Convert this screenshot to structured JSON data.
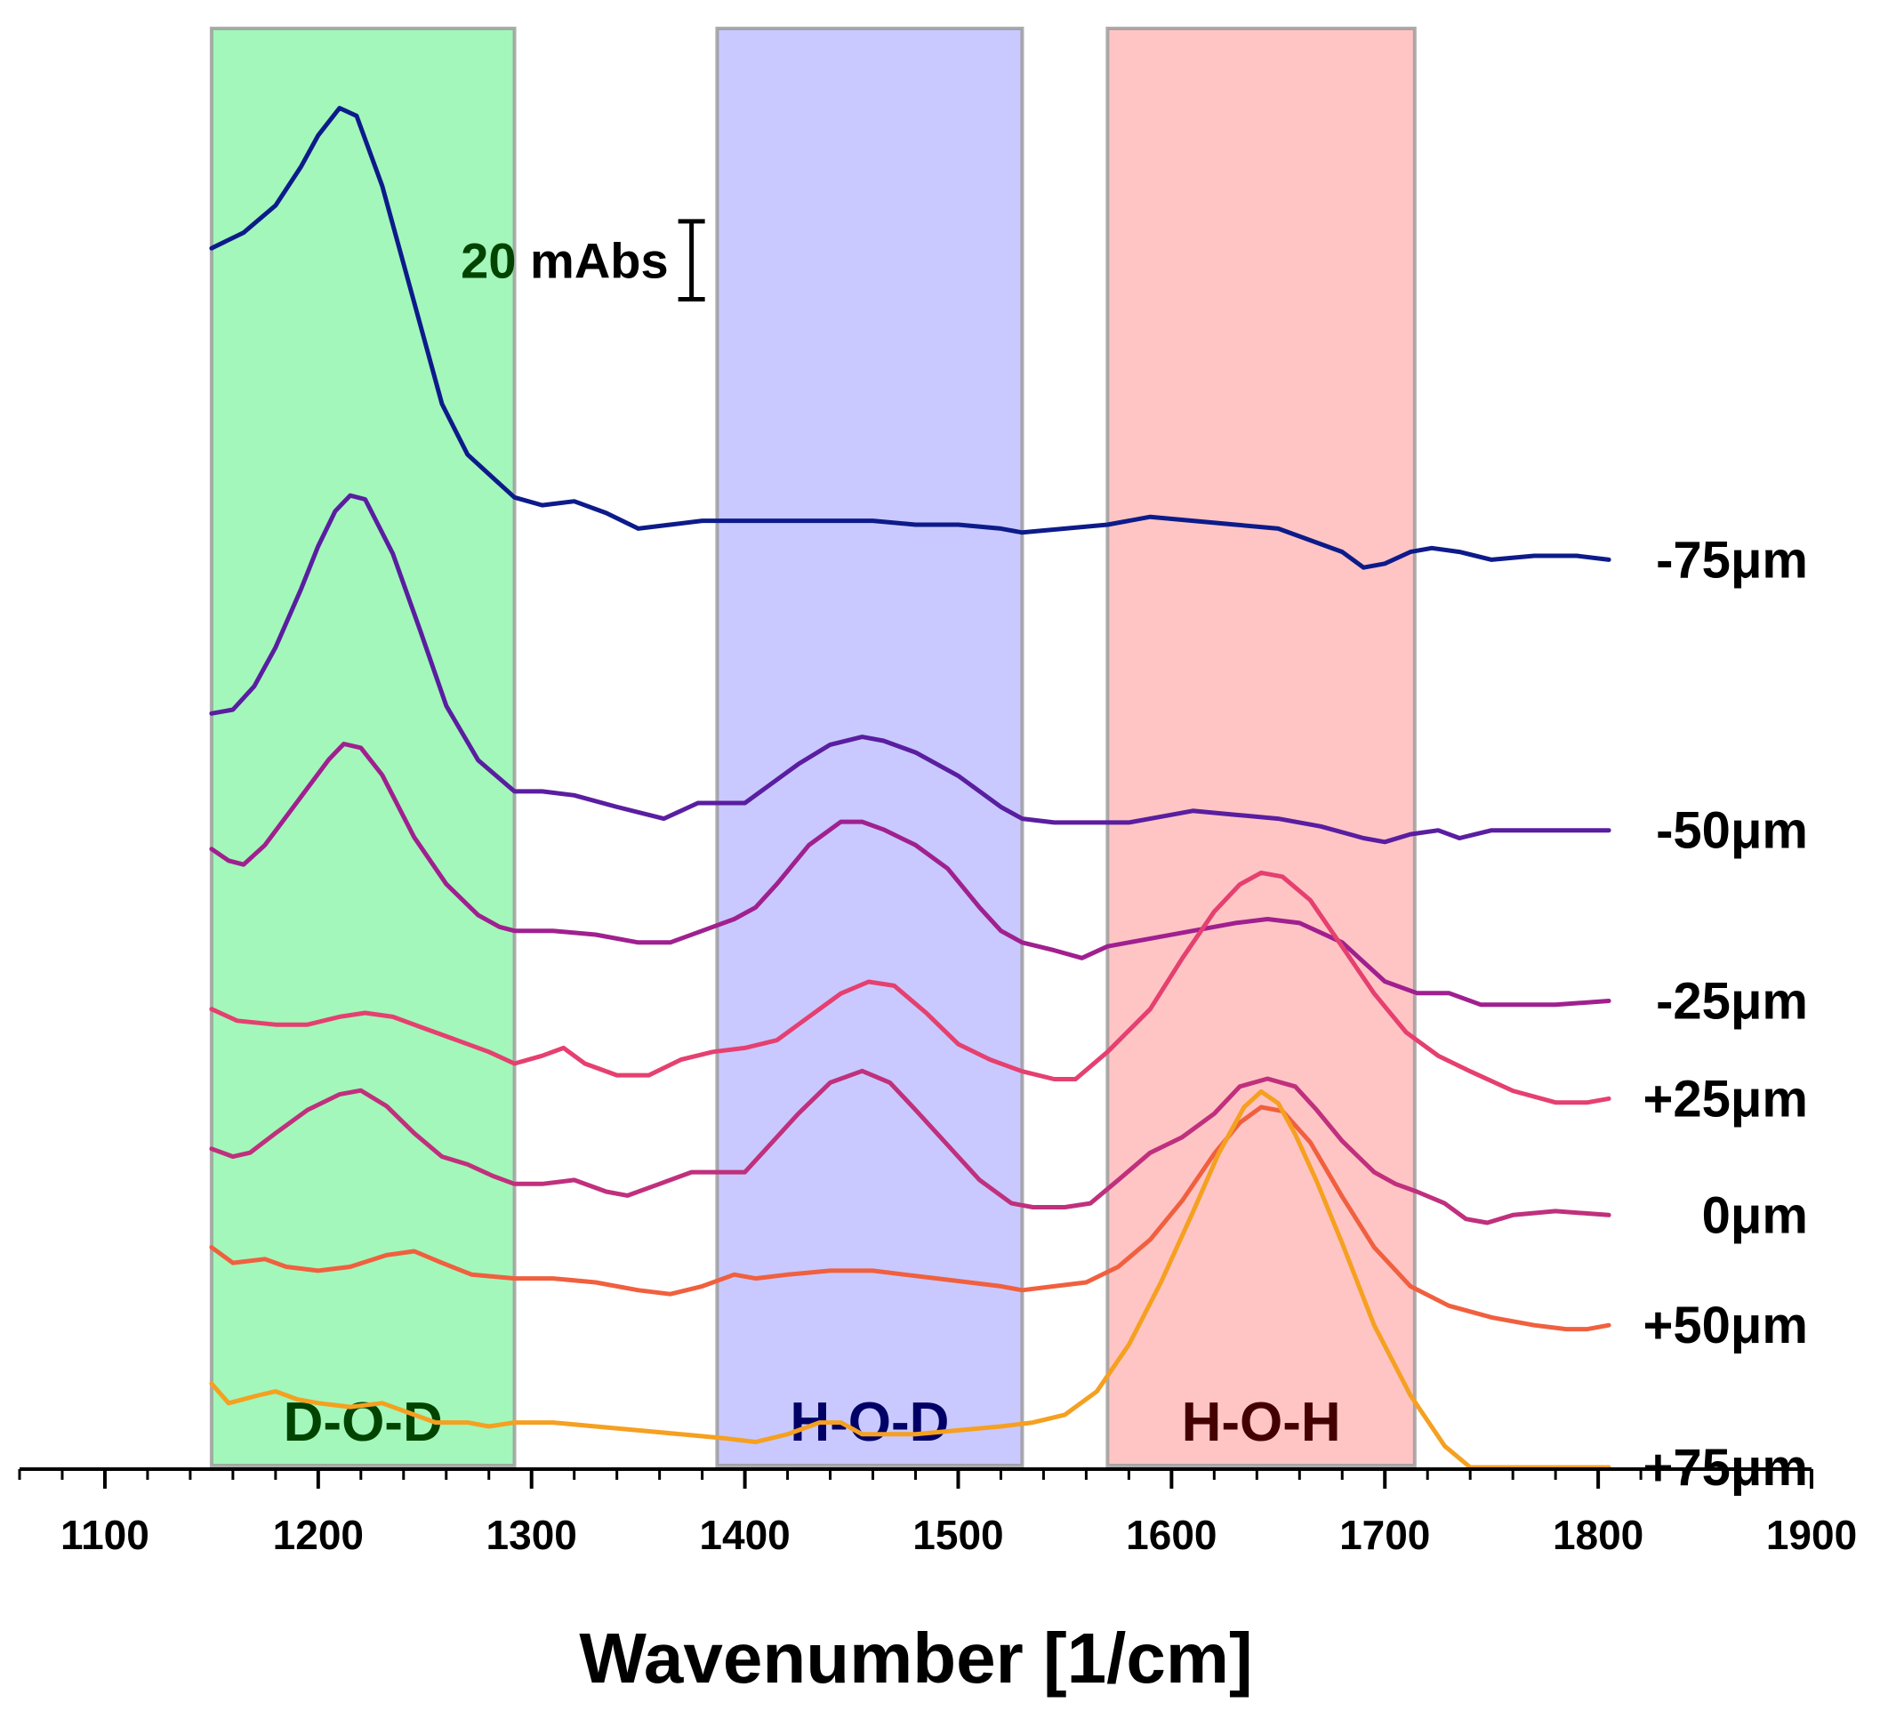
{
  "chart_data": {
    "type": "line",
    "title": "",
    "xlabel": "Wavenumber [1/cm]",
    "ylabel": "",
    "xlim": [
      1060,
      1900
    ],
    "ylim": [
      -70,
      300
    ],
    "x_ticks": [
      1100,
      1200,
      1300,
      1400,
      1500,
      1600,
      1700,
      1800,
      1900
    ],
    "x_tick_labels": [
      "1100",
      "1200",
      "1300",
      "1400",
      "1500",
      "1600",
      "1700",
      "1800",
      "1900"
    ],
    "y_axis_visible": false,
    "bands": [
      {
        "label": "D-O-D",
        "from": 1150,
        "to": 1292,
        "fill": "#33ee66",
        "label_color": "#004400"
      },
      {
        "label": "H-O-D",
        "from": 1387,
        "to": 1530,
        "fill": "#8888ff",
        "label_color": "#000066"
      },
      {
        "label": "H-O-H",
        "from": 1570,
        "to": 1714,
        "fill": "#ff7f7f",
        "label_color": "#440000"
      }
    ],
    "scale_bar": {
      "label": "20 mAbs",
      "value": 20,
      "x": 1375,
      "y_bottom": 230
    },
    "series": [
      {
        "name": "-75μm",
        "color": "#0d1b8a",
        "x": [
          1150,
          1165,
          1180,
          1192,
          1200,
          1210,
          1218,
          1230,
          1245,
          1258,
          1270,
          1282,
          1292,
          1305,
          1320,
          1335,
          1350,
          1365,
          1380,
          1400,
          1420,
          1440,
          1460,
          1480,
          1500,
          1520,
          1530,
          1550,
          1570,
          1590,
          1610,
          1630,
          1650,
          1665,
          1680,
          1690,
          1700,
          1712,
          1722,
          1735,
          1750,
          1770,
          1790,
          1805
        ],
        "y": [
          243.1,
          247.1,
          254.1,
          264.1,
          272.1,
          279.1,
          277.1,
          259.1,
          229.1,
          203.1,
          190.1,
          184.1,
          179.1,
          177.1,
          178.1,
          175.1,
          171.1,
          172.1,
          173.1,
          173.1,
          173.1,
          173.1,
          173.1,
          172.1,
          172.1,
          171.1,
          170.1,
          171.1,
          172.1,
          174.1,
          173.1,
          172.1,
          171.1,
          168.1,
          165.1,
          161.1,
          162.1,
          165.1,
          166.1,
          165.1,
          163.1,
          164.1,
          164.1,
          163.1
        ]
      },
      {
        "name": "-50μm",
        "color": "#5a1ea0",
        "x": [
          1150,
          1160,
          1170,
          1180,
          1192,
          1200,
          1208,
          1215,
          1222,
          1235,
          1248,
          1260,
          1275,
          1292,
          1305,
          1320,
          1340,
          1362,
          1378,
          1390,
          1400,
          1410,
          1425,
          1440,
          1455,
          1465,
          1480,
          1500,
          1520,
          1530,
          1545,
          1560,
          1580,
          1600,
          1610,
          1630,
          1650,
          1670,
          1690,
          1700,
          1712,
          1725,
          1735,
          1750,
          1770,
          1790,
          1805
        ],
        "y": [
          123.6,
          124.6,
          130.6,
          140.6,
          155.6,
          166.6,
          175.6,
          179.6,
          178.6,
          164.6,
          144.6,
          125.6,
          111.6,
          103.6,
          103.6,
          102.6,
          99.6,
          96.6,
          100.6,
          100.6,
          100.6,
          104.6,
          110.6,
          115.6,
          117.6,
          116.6,
          113.6,
          107.6,
          99.6,
          96.6,
          95.6,
          95.6,
          95.6,
          97.6,
          98.6,
          97.6,
          96.6,
          94.6,
          91.6,
          90.6,
          92.6,
          93.6,
          91.6,
          93.6,
          93.6,
          93.6,
          93.6
        ]
      },
      {
        "name": "-25μm",
        "color": "#a0208f",
        "x": [
          1150,
          1158,
          1165,
          1175,
          1190,
          1205,
          1212,
          1220,
          1230,
          1245,
          1260,
          1275,
          1285,
          1292,
          1310,
          1330,
          1350,
          1365,
          1380,
          1395,
          1405,
          1415,
          1430,
          1445,
          1455,
          1465,
          1480,
          1495,
          1510,
          1520,
          1530,
          1545,
          1558,
          1570,
          1590,
          1610,
          1630,
          1645,
          1660,
          1680,
          1700,
          1715,
          1730,
          1745,
          1760,
          1780,
          1805
        ],
        "y": [
          88.8,
          85.8,
          84.8,
          89.8,
          100.8,
          111.8,
          115.8,
          114.8,
          107.8,
          91.8,
          79.8,
          71.8,
          68.8,
          67.8,
          67.8,
          66.8,
          64.8,
          64.8,
          67.8,
          70.8,
          73.8,
          79.8,
          89.8,
          95.8,
          95.8,
          93.8,
          89.8,
          83.8,
          73.8,
          67.8,
          64.8,
          62.8,
          60.8,
          63.8,
          65.8,
          67.8,
          69.8,
          70.8,
          69.8,
          64.8,
          54.8,
          51.8,
          51.8,
          48.8,
          48.8,
          48.8,
          49.8
        ]
      },
      {
        "name": "0μm",
        "color": "#c0307d",
        "x": [
          1150,
          1160,
          1168,
          1180,
          1195,
          1210,
          1220,
          1232,
          1245,
          1258,
          1270,
          1282,
          1292,
          1305,
          1320,
          1335,
          1345,
          1360,
          1375,
          1390,
          1400,
          1410,
          1425,
          1440,
          1455,
          1468,
          1480,
          1495,
          1510,
          1525,
          1535,
          1550,
          1562,
          1575,
          1590,
          1605,
          1620,
          1632,
          1645,
          1658,
          1668,
          1680,
          1695,
          1705,
          1715,
          1728,
          1738,
          1748,
          1760,
          1780,
          1805
        ],
        "y": [
          11.8,
          9.8,
          10.8,
          15.8,
          21.8,
          25.8,
          26.8,
          22.8,
          15.8,
          9.8,
          7.8,
          4.8,
          2.8,
          2.8,
          3.8,
          0.8,
          -0.2,
          2.8,
          5.8,
          5.8,
          5.8,
          11.8,
          20.8,
          28.8,
          31.8,
          28.8,
          21.8,
          12.8,
          3.8,
          -2.2,
          -3.2,
          -3.2,
          -2.2,
          3.8,
          10.8,
          14.8,
          20.8,
          27.8,
          29.8,
          27.8,
          21.8,
          13.8,
          5.8,
          2.8,
          0.8,
          -2.2,
          -6.2,
          -7.2,
          -5.2,
          -4.2,
          -5.2
        ]
      },
      {
        "name": "+25μm",
        "color": "#e54070",
        "x": [
          1150,
          1162,
          1180,
          1195,
          1210,
          1222,
          1235,
          1250,
          1265,
          1280,
          1292,
          1305,
          1315,
          1325,
          1340,
          1355,
          1370,
          1385,
          1400,
          1415,
          1430,
          1445,
          1458,
          1470,
          1485,
          1500,
          1515,
          1530,
          1545,
          1555,
          1570,
          1590,
          1605,
          1620,
          1632,
          1642,
          1652,
          1665,
          1680,
          1695,
          1710,
          1725,
          1740,
          1760,
          1780,
          1795,
          1805
        ],
        "y": [
          47.7,
          44.7,
          43.7,
          43.7,
          45.7,
          46.7,
          45.7,
          42.7,
          39.7,
          36.7,
          33.7,
          35.7,
          37.7,
          33.7,
          30.7,
          30.7,
          34.7,
          36.7,
          37.7,
          39.7,
          45.7,
          51.7,
          54.7,
          53.7,
          46.7,
          38.7,
          34.7,
          31.7,
          29.7,
          29.7,
          36.7,
          47.7,
          60.7,
          72.7,
          79.7,
          82.7,
          81.7,
          75.7,
          63.7,
          51.7,
          41.7,
          35.7,
          31.7,
          26.7,
          23.7,
          23.7,
          24.7
        ]
      },
      {
        "name": "+50μm",
        "color": "#f0603f",
        "x": [
          1150,
          1160,
          1175,
          1185,
          1200,
          1215,
          1232,
          1245,
          1258,
          1272,
          1292,
          1310,
          1330,
          1350,
          1365,
          1380,
          1395,
          1405,
          1420,
          1440,
          1460,
          1475,
          1490,
          1505,
          1520,
          1530,
          1545,
          1560,
          1575,
          1590,
          1605,
          1620,
          1632,
          1642,
          1652,
          1665,
          1680,
          1695,
          1712,
          1730,
          1750,
          1770,
          1785,
          1795,
          1805
        ],
        "y": [
          -13.5,
          -17.5,
          -16.5,
          -18.5,
          -19.5,
          -18.5,
          -15.5,
          -14.5,
          -17.5,
          -20.5,
          -21.5,
          -21.5,
          -22.5,
          -24.5,
          -25.5,
          -23.5,
          -20.5,
          -21.5,
          -20.5,
          -19.5,
          -19.5,
          -20.5,
          -21.5,
          -22.5,
          -23.5,
          -24.5,
          -23.5,
          -22.5,
          -18.5,
          -11.5,
          -1.5,
          10.5,
          18.5,
          22.5,
          21.5,
          13.5,
          -0.5,
          -13.5,
          -23.5,
          -28.5,
          -31.5,
          -33.5,
          -34.5,
          -34.5,
          -33.5
        ]
      },
      {
        "name": "+75μm",
        "color": "#f5a020",
        "x": [
          1150,
          1158,
          1165,
          1172,
          1180,
          1190,
          1200,
          1215,
          1230,
          1240,
          1255,
          1270,
          1280,
          1292,
          1310,
          1330,
          1350,
          1370,
          1390,
          1405,
          1420,
          1435,
          1445,
          1455,
          1465,
          1480,
          1500,
          1520,
          1535,
          1550,
          1565,
          1580,
          1595,
          1610,
          1622,
          1634,
          1642,
          1650,
          1658,
          1668,
          1680,
          1695,
          1712,
          1728,
          1740,
          1760,
          1780,
          1795,
          1805
        ],
        "y": [
          -48.5,
          -53.5,
          -52.5,
          -51.5,
          -50.5,
          -52.5,
          -53.5,
          -54.5,
          -53.5,
          -55.5,
          -58.5,
          -58.5,
          -59.5,
          -58.5,
          -58.5,
          -59.5,
          -60.5,
          -61.5,
          -62.5,
          -63.5,
          -61.5,
          -58.5,
          -58.5,
          -61.5,
          -61.5,
          -61.5,
          -60.5,
          -59.5,
          -58.5,
          -56.5,
          -50.5,
          -38.5,
          -22.5,
          -4.5,
          10.5,
          22.5,
          26.5,
          23.5,
          15.5,
          3.5,
          -12.5,
          -33.5,
          -51.5,
          -64.5,
          -70.0,
          -70.0,
          -70.0,
          -70.0,
          -70.0
        ]
      }
    ]
  }
}
